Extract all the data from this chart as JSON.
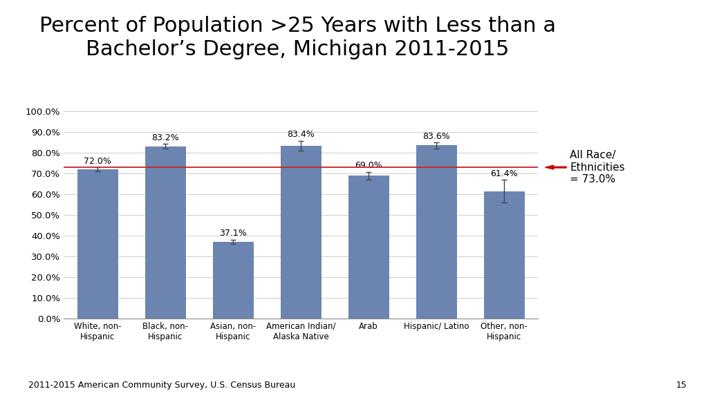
{
  "title": "Percent of Population >25 Years with Less than a\nBachelor’s Degree, Michigan 2011-2015",
  "categories": [
    "White, non-\nHispanic",
    "Black, non-\nHispanic",
    "Asian, non-\nHispanic",
    "American Indian/\nAlaska Native",
    "Arab",
    "Hispanic/ Latino",
    "Other, non-\nHispanic"
  ],
  "values": [
    72.0,
    83.2,
    37.1,
    83.4,
    69.0,
    83.6,
    61.4
  ],
  "errors": [
    1.0,
    1.2,
    1.0,
    2.5,
    1.8,
    1.5,
    5.5
  ],
  "bar_color": "#6b85b0",
  "reference_line": 73.0,
  "reference_label": "All Race/\nEthnicities\n= 73.0%",
  "ylim": [
    0,
    100
  ],
  "yticks": [
    0,
    10,
    20,
    30,
    40,
    50,
    60,
    70,
    80,
    90,
    100
  ],
  "ytick_labels": [
    "0.0%",
    "10.0%",
    "20.0%",
    "30.0%",
    "40.0%",
    "50.0%",
    "60.0%",
    "70.0%",
    "80.0%",
    "90.0%",
    "100.0%"
  ],
  "footnote": "2011-2015 American Community Survey, U.S. Census Bureau",
  "page_number": "15",
  "background_color": "#ffffff",
  "title_fontsize": 22,
  "label_fontsize": 9,
  "tick_fontsize": 9.5,
  "ref_arrow_color": "#cc0000"
}
